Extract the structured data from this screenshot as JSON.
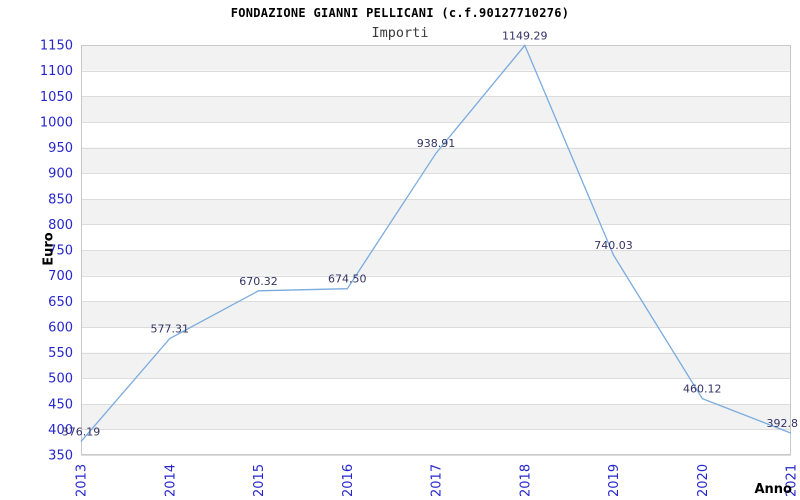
{
  "chart_data": {
    "type": "line",
    "title": "FONDAZIONE GIANNI PELLICANI (c.f.90127710276)",
    "subtitle": "Importi",
    "xlabel": "Anno",
    "ylabel": "Euro",
    "categories": [
      "2013",
      "2014",
      "2015",
      "2016",
      "2017",
      "2018",
      "2019",
      "2020",
      "2021"
    ],
    "series": [
      {
        "name": "Importi",
        "values": [
          376.19,
          577.31,
          670.32,
          674.5,
          938.91,
          1149.29,
          740.03,
          460.12,
          392.8
        ]
      }
    ],
    "point_labels": [
      "376.19",
      "577.31",
      "670.32",
      "674.50",
      "938.91",
      "1149.29",
      "740.03",
      "460.12",
      "392.8"
    ],
    "ylim": [
      350,
      1150
    ],
    "ytick_step": 50,
    "grid": true,
    "banded_background": true,
    "legend": "none",
    "colors": {
      "line": "#7aabdf",
      "tick_label": "#2626cc",
      "point_label": "#333366",
      "band": "#f2f2f2",
      "gridline": "#dcdcdc",
      "plot_border": "#c9c9c9",
      "title": "#000000",
      "subtitle": "#3c3c3c",
      "axis_title": "#000000",
      "background": "#ffffff"
    }
  }
}
